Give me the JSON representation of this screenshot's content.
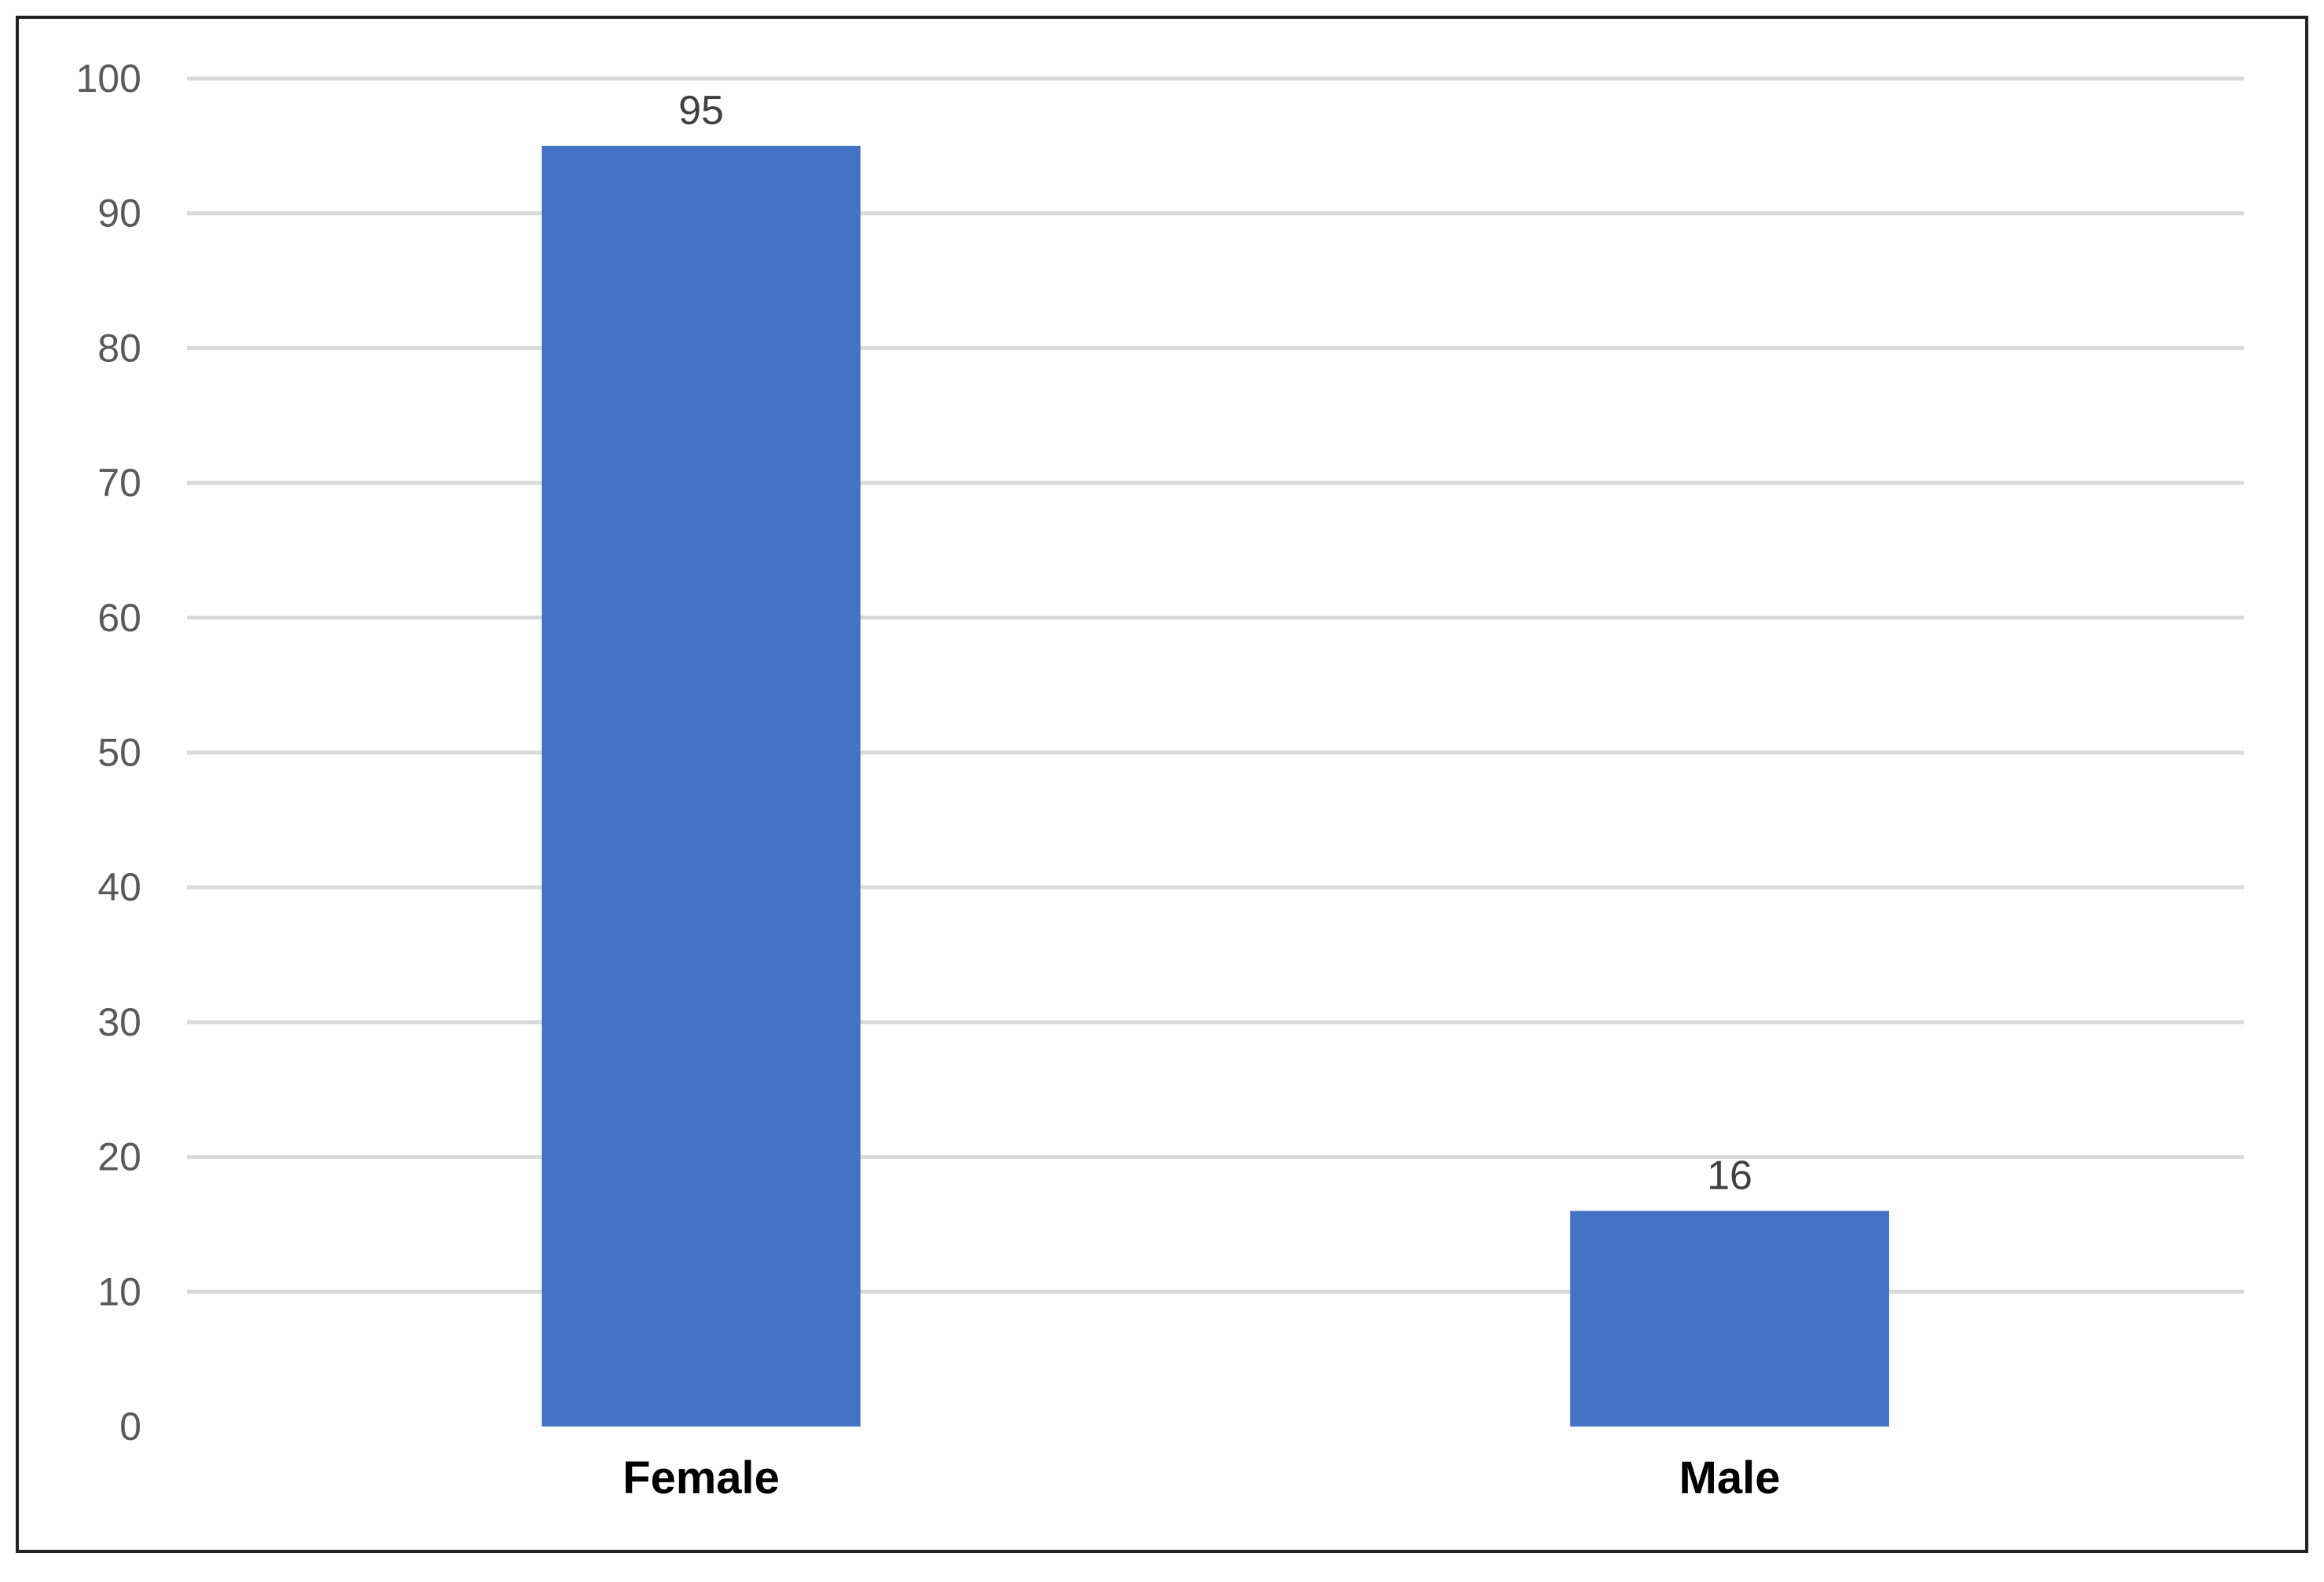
{
  "chart_data": {
    "type": "bar",
    "categories": [
      "Female",
      "Male"
    ],
    "values": [
      95,
      16
    ],
    "data_labels": [
      "95",
      "16"
    ],
    "yticks": [
      0,
      10,
      20,
      30,
      40,
      50,
      60,
      70,
      80,
      90,
      100
    ],
    "ytick_labels": [
      "0",
      "10",
      "20",
      "30",
      "40",
      "50",
      "60",
      "70",
      "80",
      "90",
      "100"
    ],
    "ylim": [
      0,
      100
    ],
    "grid": true,
    "legend": "none",
    "title": "",
    "xlabel": "",
    "ylabel": "",
    "colors": {
      "bar": "#4472C4",
      "grid": "#D9D9D9",
      "border": "#222222"
    }
  }
}
